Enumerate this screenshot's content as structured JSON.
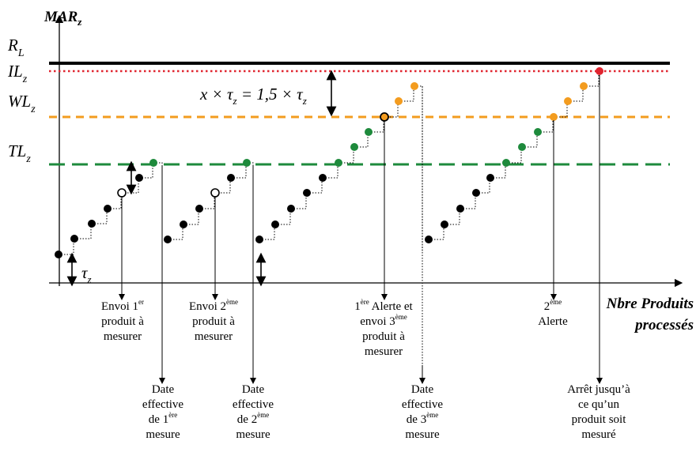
{
  "y_axis": {
    "main": "MAR",
    "sub": "z"
  },
  "x_axis": {
    "line1": "Nbre Produits",
    "line2": "processés"
  },
  "levels": {
    "rl": {
      "main": "R",
      "sub": "L",
      "color": "#000000"
    },
    "il": {
      "main": "IL",
      "sub": "z",
      "color": "#e0242f"
    },
    "wl": {
      "main": "WL",
      "sub": "z",
      "color": "#f39c1f"
    },
    "tl": {
      "main": "TL",
      "sub": "z",
      "color": "#1e8a3c"
    }
  },
  "tau": {
    "main": "τ",
    "sub": "z"
  },
  "formula": {
    "lhs": "x × τ",
    "sub1": "z",
    "rhs": " = 1,5 × τ",
    "sub2": "z"
  },
  "colors": {
    "normal": "#000000",
    "green": "#1e8a3c",
    "orange": "#f39c1f",
    "red": "#e0242f"
  },
  "annotations": {
    "envoi1": {
      "l1a": "Envoi 1",
      "l1sup": "er",
      "l2": "produit à",
      "l3": "mesurer"
    },
    "envoi2": {
      "l1a": "Envoi 2",
      "l1sup": "ème",
      "l2": "produit à",
      "l3": "mesurer"
    },
    "alerte1": {
      "l1a": "1",
      "l1sup": "ère",
      "l1b": " Alerte et",
      "l2a": "envoi 3",
      "l2sup": "ème",
      "l3": "produit à",
      "l4": "mesurer"
    },
    "alerte2": {
      "l1a": "2",
      "l1sup": "ème",
      "l2": "Alerte"
    },
    "date1": {
      "l1": "Date",
      "l2": "effective",
      "l3a": "de 1",
      "l3sup": "ère",
      "l4": "mesure"
    },
    "date2": {
      "l1": "Date",
      "l2": "effective",
      "l3a": "de 2",
      "l3sup": "ème",
      "l4": "mesure"
    },
    "date3": {
      "l1": "Date",
      "l2": "effective",
      "l3a": "de 3",
      "l3sup": "ème",
      "l4": "mesure"
    },
    "arret": {
      "l1": "Arrêt jusqu’à",
      "l2": "ce qu’un",
      "l3": "produit soit",
      "l4": "mesuré"
    }
  }
}
